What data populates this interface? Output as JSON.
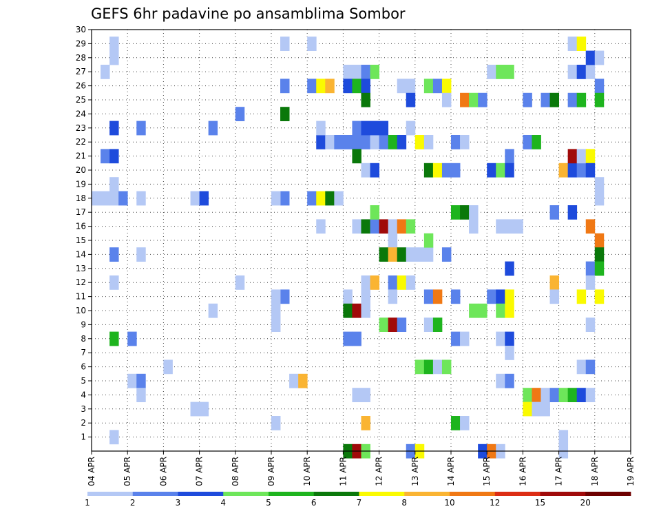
{
  "chart_data": {
    "type": "heatmap",
    "title": "GEFS 6hr padavine po ansamblima Sombor",
    "xlabel": "",
    "ylabel": "",
    "x_ticks": [
      "04 APR",
      "05 APR",
      "06 APR",
      "07 APR",
      "08 APR",
      "09 APR",
      "10 APR",
      "11 APR",
      "12 APR",
      "13 APR",
      "14 APR",
      "15 APR",
      "16 APR",
      "17 APR",
      "18 APR",
      "19 APR"
    ],
    "y_ticks": [
      "1",
      "2",
      "3",
      "4",
      "5",
      "6",
      "7",
      "8",
      "9",
      "10",
      "11",
      "12",
      "13",
      "14",
      "15",
      "16",
      "17",
      "18",
      "19",
      "20",
      "21",
      "22",
      "23",
      "24",
      "25",
      "26",
      "27",
      "28",
      "29",
      "30"
    ],
    "ylim": [
      0,
      30
    ],
    "x_step_hours": 6,
    "grid": true,
    "colorbar": {
      "labels": [
        "1",
        "2",
        "3",
        "4",
        "5",
        "6",
        "7",
        "8",
        "10",
        "12",
        "15",
        "20"
      ],
      "colors": [
        "#b4c8f5",
        "#5a82eb",
        "#1e4bdc",
        "#6ee65a",
        "#1eb41e",
        "#0a780a",
        "#fafa00",
        "#fab432",
        "#f07814",
        "#dc2d14",
        "#a00a0a",
        "#6e0000"
      ]
    },
    "cells": [
      [
        18,
        29,
        1
      ],
      [
        18,
        28,
        1
      ],
      [
        17,
        27,
        1
      ],
      [
        18,
        19,
        1
      ],
      [
        16,
        18,
        1
      ],
      [
        17,
        18,
        1
      ],
      [
        18,
        18,
        1
      ],
      [
        19,
        18,
        2
      ],
      [
        21,
        18,
        1
      ],
      [
        17,
        21,
        2
      ],
      [
        18,
        21,
        3
      ],
      [
        18,
        23,
        3
      ],
      [
        21,
        23,
        2
      ],
      [
        18,
        14,
        2
      ],
      [
        21,
        14,
        1
      ],
      [
        18,
        12,
        1
      ],
      [
        18,
        8,
        5
      ],
      [
        20,
        8,
        2
      ],
      [
        20,
        5,
        1
      ],
      [
        21,
        5,
        2
      ],
      [
        21,
        4,
        1
      ],
      [
        24,
        6,
        1
      ],
      [
        18,
        1,
        1
      ],
      [
        27,
        18,
        1
      ],
      [
        28,
        18,
        3
      ],
      [
        29,
        10,
        1
      ],
      [
        29,
        23,
        2
      ],
      [
        27,
        3,
        1
      ],
      [
        28,
        3,
        1
      ],
      [
        32,
        12,
        1
      ],
      [
        32,
        24,
        2
      ],
      [
        37,
        29,
        1
      ],
      [
        37,
        26,
        2
      ],
      [
        37,
        24,
        6
      ],
      [
        37,
        18,
        2
      ],
      [
        36,
        18,
        1
      ],
      [
        37,
        11,
        2
      ],
      [
        36,
        11,
        1
      ],
      [
        36,
        10,
        1
      ],
      [
        36,
        9,
        1
      ],
      [
        36,
        2,
        1
      ],
      [
        38,
        5,
        1
      ],
      [
        39,
        5,
        8
      ],
      [
        40,
        29,
        1
      ],
      [
        40,
        26,
        2
      ],
      [
        41,
        26,
        7
      ],
      [
        42,
        26,
        8
      ],
      [
        41,
        22,
        3
      ],
      [
        42,
        22,
        1
      ],
      [
        43,
        22,
        2
      ],
      [
        44,
        22,
        2
      ],
      [
        45,
        22,
        2
      ],
      [
        46,
        22,
        2
      ],
      [
        47,
        22,
        1
      ],
      [
        48,
        22,
        2
      ],
      [
        49,
        22,
        5
      ],
      [
        50,
        22,
        3
      ],
      [
        41,
        23,
        1
      ],
      [
        45,
        23,
        2
      ],
      [
        46,
        23,
        3
      ],
      [
        47,
        23,
        3
      ],
      [
        48,
        23,
        3
      ],
      [
        44,
        27,
        1
      ],
      [
        45,
        27,
        1
      ],
      [
        46,
        27,
        2
      ],
      [
        47,
        27,
        4
      ],
      [
        44,
        26,
        3
      ],
      [
        45,
        26,
        5
      ],
      [
        46,
        26,
        3
      ],
      [
        46,
        25,
        6
      ],
      [
        40,
        18,
        2
      ],
      [
        41,
        18,
        7
      ],
      [
        42,
        18,
        6
      ],
      [
        43,
        18,
        1
      ],
      [
        41,
        16,
        1
      ],
      [
        45,
        16,
        1
      ],
      [
        46,
        16,
        6
      ],
      [
        47,
        16,
        2
      ],
      [
        48,
        16,
        11
      ],
      [
        49,
        16,
        1
      ],
      [
        50,
        16,
        9
      ],
      [
        51,
        16,
        4
      ],
      [
        47,
        17,
        4
      ],
      [
        49,
        15,
        1
      ],
      [
        48,
        14,
        6
      ],
      [
        49,
        14,
        8
      ],
      [
        50,
        14,
        6
      ],
      [
        51,
        14,
        1
      ],
      [
        52,
        14,
        1
      ],
      [
        53,
        14,
        1
      ],
      [
        44,
        11,
        1
      ],
      [
        44,
        10,
        6
      ],
      [
        45,
        10,
        11
      ],
      [
        46,
        10,
        1
      ],
      [
        46,
        12,
        1
      ],
      [
        47,
        12,
        8
      ],
      [
        49,
        12,
        2
      ],
      [
        50,
        12,
        7
      ],
      [
        51,
        12,
        1
      ],
      [
        48,
        9,
        4
      ],
      [
        49,
        9,
        11
      ],
      [
        50,
        9,
        2
      ],
      [
        46,
        11,
        1
      ],
      [
        49,
        11,
        1
      ],
      [
        45,
        4,
        1
      ],
      [
        46,
        4,
        1
      ],
      [
        44,
        8,
        2
      ],
      [
        45,
        8,
        2
      ],
      [
        46,
        2,
        8
      ],
      [
        44,
        0,
        6
      ],
      [
        45,
        0,
        11
      ],
      [
        46,
        0,
        4
      ],
      [
        46,
        20,
        1
      ],
      [
        47,
        20,
        3
      ],
      [
        45,
        21,
        6
      ],
      [
        51,
        0,
        2
      ],
      [
        52,
        0,
        7
      ],
      [
        50,
        26,
        1
      ],
      [
        51,
        26,
        1
      ],
      [
        51,
        25,
        3
      ],
      [
        51,
        23,
        1
      ],
      [
        52,
        22,
        7
      ],
      [
        53,
        22,
        1
      ],
      [
        53,
        20,
        6
      ],
      [
        54,
        20,
        7
      ],
      [
        55,
        20,
        2
      ],
      [
        53,
        26,
        4
      ],
      [
        54,
        26,
        2
      ],
      [
        55,
        26,
        7
      ],
      [
        55,
        25,
        1
      ],
      [
        53,
        15,
        4
      ],
      [
        55,
        14,
        2
      ],
      [
        52,
        6,
        4
      ],
      [
        53,
        6,
        5
      ],
      [
        54,
        6,
        1
      ],
      [
        55,
        6,
        4
      ],
      [
        53,
        9,
        1
      ],
      [
        54,
        9,
        5
      ],
      [
        53,
        11,
        2
      ],
      [
        54,
        11,
        9
      ],
      [
        56,
        11,
        2
      ],
      [
        56,
        8,
        2
      ],
      [
        57,
        8,
        1
      ],
      [
        56,
        2,
        5
      ],
      [
        57,
        2,
        1
      ],
      [
        58,
        10,
        4
      ],
      [
        59,
        10,
        4
      ],
      [
        56,
        22,
        2
      ],
      [
        57,
        22,
        1
      ],
      [
        56,
        20,
        2
      ],
      [
        56,
        17,
        5
      ],
      [
        57,
        17,
        6
      ],
      [
        58,
        17,
        1
      ],
      [
        58,
        16,
        1
      ],
      [
        57,
        25,
        9
      ],
      [
        58,
        25,
        4
      ],
      [
        59,
        25,
        2
      ],
      [
        59,
        0,
        3
      ],
      [
        60,
        11,
        2
      ],
      [
        61,
        11,
        3
      ],
      [
        62,
        11,
        7
      ],
      [
        61,
        10,
        4
      ],
      [
        62,
        10,
        7
      ],
      [
        61,
        16,
        1
      ],
      [
        62,
        16,
        1
      ],
      [
        63,
        16,
        1
      ],
      [
        62,
        21,
        2
      ],
      [
        64,
        22,
        2
      ],
      [
        65,
        22,
        5
      ],
      [
        60,
        20,
        3
      ],
      [
        61,
        20,
        4
      ],
      [
        62,
        20,
        3
      ],
      [
        60,
        27,
        1
      ],
      [
        61,
        27,
        4
      ],
      [
        62,
        27,
        4
      ],
      [
        61,
        8,
        1
      ],
      [
        62,
        8,
        3
      ],
      [
        62,
        7,
        1
      ],
      [
        61,
        5,
        1
      ],
      [
        62,
        5,
        2
      ],
      [
        62,
        13,
        3
      ],
      [
        64,
        4,
        4
      ],
      [
        65,
        4,
        9
      ],
      [
        66,
        4,
        1
      ],
      [
        64,
        3,
        7
      ],
      [
        65,
        3,
        1
      ],
      [
        66,
        3,
        1
      ],
      [
        60,
        0,
        9
      ],
      [
        61,
        0,
        1
      ],
      [
        67,
        12,
        8
      ],
      [
        67,
        11,
        1
      ],
      [
        67,
        17,
        2
      ],
      [
        69,
        17,
        3
      ],
      [
        68,
        20,
        8
      ],
      [
        69,
        20,
        3
      ],
      [
        70,
        20,
        2
      ],
      [
        69,
        21,
        11
      ],
      [
        70,
        21,
        1
      ],
      [
        71,
        21,
        7
      ],
      [
        71,
        20,
        3
      ],
      [
        70,
        11,
        7
      ],
      [
        64,
        25,
        2
      ],
      [
        66,
        25,
        2
      ],
      [
        67,
        25,
        6
      ],
      [
        69,
        25,
        2
      ],
      [
        70,
        25,
        5
      ],
      [
        69,
        27,
        1
      ],
      [
        70,
        27,
        3
      ],
      [
        71,
        27,
        1
      ],
      [
        69,
        29,
        1
      ],
      [
        70,
        29,
        7
      ],
      [
        71,
        28,
        3
      ],
      [
        72,
        28,
        1
      ],
      [
        68,
        1,
        1
      ],
      [
        68,
        0,
        1
      ],
      [
        67,
        4,
        2
      ],
      [
        68,
        4,
        4
      ],
      [
        69,
        4,
        5
      ],
      [
        70,
        4,
        3
      ],
      [
        71,
        4,
        1
      ],
      [
        70,
        6,
        1
      ],
      [
        71,
        6,
        2
      ],
      [
        71,
        9,
        1
      ],
      [
        71,
        16,
        9
      ],
      [
        72,
        15,
        9
      ],
      [
        72,
        14,
        6
      ],
      [
        71,
        13,
        2
      ],
      [
        72,
        13,
        5
      ],
      [
        71,
        12,
        1
      ],
      [
        72,
        11,
        7
      ],
      [
        72,
        26,
        2
      ],
      [
        72,
        25,
        5
      ],
      [
        72,
        19,
        1
      ],
      [
        72,
        18,
        1
      ]
    ]
  }
}
